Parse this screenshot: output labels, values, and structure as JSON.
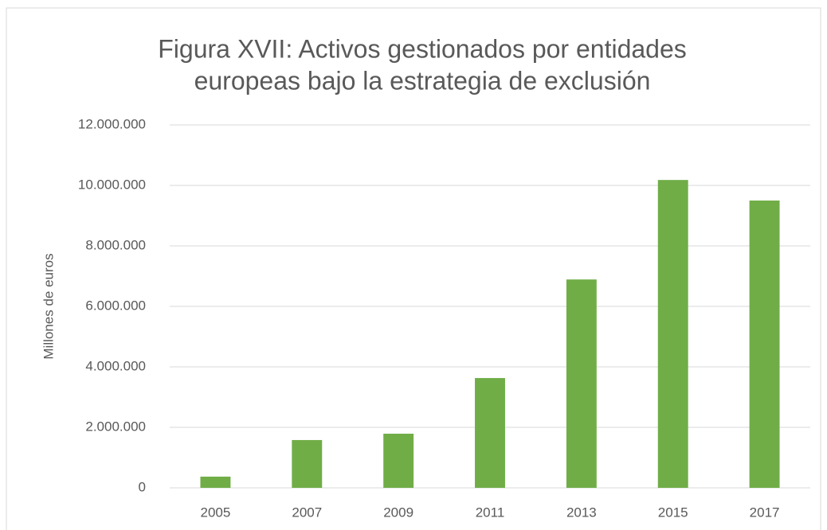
{
  "chart_data": {
    "type": "bar",
    "title": [
      "Figura XVII: Activos gestionados por entidades",
      "europeas bajo la estrategia de exclusión"
    ],
    "y_label": "Millones de euros",
    "categories": [
      "2005",
      "2007",
      "2009",
      "2011",
      "2013",
      "2015",
      "2017"
    ],
    "values": [
      370000,
      1580000,
      1790000,
      3630000,
      6890000,
      10180000,
      9500000
    ],
    "color": "#70ad47",
    "ylim": [
      0,
      12000000
    ],
    "yticks": [
      0,
      {
        "value": 2000000,
        "label": "2.000.000"
      },
      {
        "value": 4000000,
        "label": "4.000.000"
      },
      {
        "value": 6000000,
        "label": "6.000.000"
      },
      {
        "value": 8000000,
        "label": "8.000.000"
      },
      {
        "value": 10000000,
        "label": "10.000.000"
      },
      {
        "value": 12000000,
        "label": "12.000.000"
      }
    ],
    "grid": true
  }
}
